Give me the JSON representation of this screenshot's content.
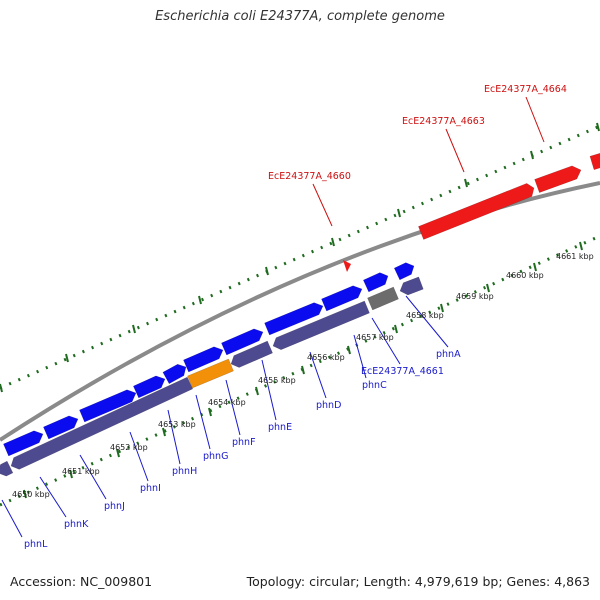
{
  "title": "Escherichia coli E24377A, complete genome",
  "footer": {
    "accession": "Accession: NC_009801",
    "topology": "Topology: circular; Length: 4,979,619 bp; Genes: 4,863"
  },
  "colors": {
    "cds_forward": "#0b0bf0",
    "cds_reverse": "#4e4a8f",
    "highlight": "#f2900a",
    "pseudo": "#6c6c6c",
    "red_feature": "#ee1a1a",
    "backbone": "#8a8a8a",
    "tick": "#1f6b1f",
    "label_blue": "#1a1acc",
    "label_red": "#cc1111"
  },
  "kbp_labels": [
    "4650 kbp",
    "4651 kbp",
    "4652 kbp",
    "4653 kbp",
    "4654 kbp",
    "4655 kbp",
    "4656 kbp",
    "4657 kbp",
    "4658 kbp",
    "4659 kbp",
    "4660 kbp",
    "4661 kbp"
  ],
  "gene_labels": [
    "phnL",
    "phnK",
    "phnJ",
    "phnI",
    "phnH",
    "phnG",
    "phnF",
    "phnE",
    "phnD",
    "phnC",
    "EcE24377A_4661",
    "phnA"
  ],
  "red_labels": [
    "EcE24377A_4660",
    "EcE24377A_4663",
    "EcE24377A_4664"
  ]
}
